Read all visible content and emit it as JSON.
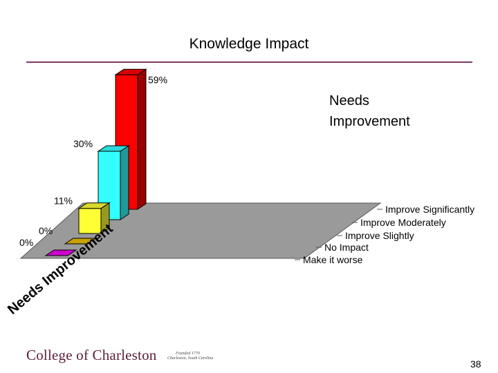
{
  "title": "Knowledge Impact",
  "slide_number": "38",
  "footer": {
    "institution": "College of Charleston",
    "seal_text": "Founded 1770 Charleston, South Carolina"
  },
  "chart_data": {
    "type": "bar",
    "title": "Knowledge Impact",
    "series": [
      {
        "name": "Needs Improvement",
        "values": [
          59,
          30,
          11,
          0,
          0
        ],
        "value_labels": [
          "59%",
          "30%",
          "11%",
          "0%",
          "0%"
        ],
        "colors": [
          "#ff0000",
          "#33ffff",
          "#ffff33",
          "#c8a000",
          "#cc00cc"
        ]
      }
    ],
    "categories": [
      "Improve Significantly",
      "Improve Moderately",
      "Improve Slightly",
      "No Impact",
      "Make it worse"
    ],
    "legend_label": "Needs Improvement",
    "ylim": [
      0,
      60
    ],
    "grid": false
  }
}
